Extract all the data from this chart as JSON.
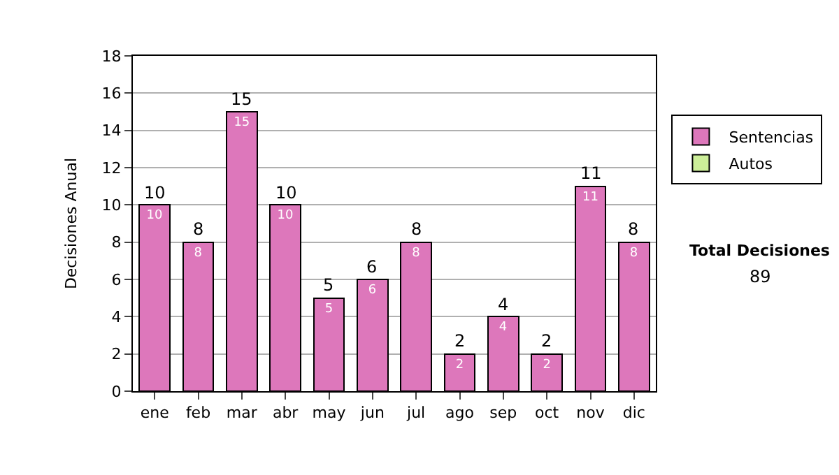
{
  "chart_data": {
    "type": "bar",
    "ylabel": "Decisiones Anual",
    "categories": [
      "ene",
      "feb",
      "mar",
      "abr",
      "may",
      "jun",
      "jul",
      "ago",
      "sep",
      "oct",
      "nov",
      "dic"
    ],
    "stacked": true,
    "series": [
      {
        "name": "Sentencias",
        "color": "#dd77bb",
        "values": [
          10,
          8,
          15,
          10,
          5,
          6,
          8,
          2,
          4,
          2,
          11,
          8
        ],
        "value_labels": [
          "10",
          "8",
          "15",
          "10",
          "5",
          "6",
          "8",
          "2",
          "4",
          "2",
          "11",
          "8"
        ]
      },
      {
        "name": "Autos",
        "color": "#ccee99",
        "values": [
          null,
          null,
          null,
          null,
          null,
          null,
          null,
          null,
          null,
          null,
          null,
          null
        ]
      }
    ],
    "totals": [
      "10",
      "8",
      "15",
      "10",
      "5",
      "6",
      "8",
      "2",
      "4",
      "2",
      "11",
      "8"
    ],
    "ylim": [
      0,
      18
    ],
    "yticks": [
      0,
      2,
      4,
      6,
      8,
      10,
      12,
      14,
      16,
      18
    ],
    "grid": "y",
    "legend": "right",
    "annotations": [
      "Total Decisiones",
      "89"
    ]
  }
}
